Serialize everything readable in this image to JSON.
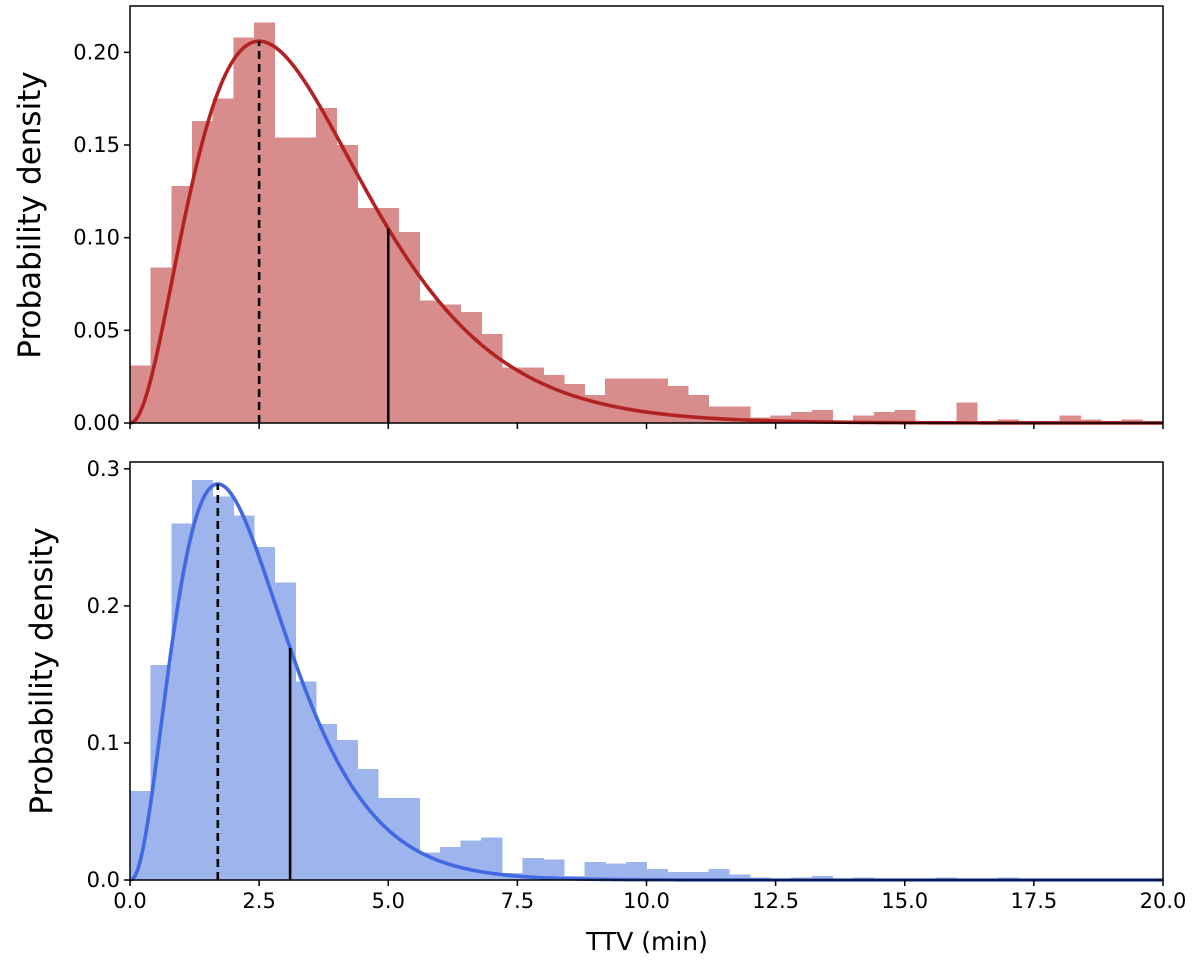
{
  "chart_data": [
    {
      "type": "bar",
      "panel": "top",
      "colors": {
        "bars": "#d98c8c",
        "curve": "#b22222",
        "lines": "#000000"
      },
      "ylabel": "Probability density",
      "xlim": [
        0,
        20
      ],
      "ylim": [
        0,
        0.225
      ],
      "yticks": [
        "0.00",
        "0.05",
        "0.10",
        "0.15",
        "0.20"
      ],
      "ytick_values": [
        0,
        0.05,
        0.1,
        0.15,
        0.2
      ],
      "bin_edges": [
        0,
        0.4,
        0.8,
        1.2,
        1.6,
        2.0,
        2.4,
        2.8,
        3.2,
        3.6,
        4.0,
        4.4,
        4.8,
        5.2,
        5.6,
        6.0,
        6.4,
        6.8,
        7.2,
        7.6,
        8.0,
        8.4,
        8.8,
        9.2,
        9.6,
        10.0,
        10.4,
        10.8,
        11.2,
        11.6,
        12.0,
        12.4,
        12.8,
        13.2,
        13.6,
        14.0,
        14.4,
        14.8,
        15.2,
        15.6,
        16.0,
        16.4,
        16.8,
        17.2,
        17.6,
        18.0,
        18.4,
        18.8,
        19.2,
        19.6,
        20.0
      ],
      "values": [
        0.031,
        0.084,
        0.128,
        0.163,
        0.175,
        0.208,
        0.216,
        0.154,
        0.154,
        0.17,
        0.15,
        0.116,
        0.116,
        0.103,
        0.066,
        0.064,
        0.06,
        0.048,
        0.03,
        0.03,
        0.026,
        0.021,
        0.015,
        0.024,
        0.024,
        0.024,
        0.02,
        0.015,
        0.009,
        0.009,
        0.003,
        0.004,
        0.006,
        0.007,
        0.001,
        0.004,
        0.006,
        0.007,
        0.001,
        0.001,
        0.011,
        0.001,
        0.002,
        0.001,
        0.001,
        0.004,
        0.002,
        0.001,
        0.002,
        0.001
      ],
      "fit_curve": {
        "mode": 2.5,
        "peak": 0.206,
        "shape": 3.2
      },
      "dashed_line_x": 2.5,
      "solid_line_x": 5.0
    },
    {
      "type": "bar",
      "panel": "bottom",
      "colors": {
        "bars": "#9db4ec",
        "curve": "#4169e1",
        "lines": "#000000"
      },
      "xlabel": "TTV (min)",
      "ylabel": "Probability density",
      "xlim": [
        0,
        20
      ],
      "ylim": [
        0,
        0.305
      ],
      "xticks": [
        "0.0",
        "2.5",
        "5.0",
        "7.5",
        "10.0",
        "12.5",
        "15.0",
        "17.5",
        "20.0"
      ],
      "xtick_values": [
        0,
        2.5,
        5,
        7.5,
        10,
        12.5,
        15,
        17.5,
        20
      ],
      "yticks": [
        "0.0",
        "0.1",
        "0.2",
        "0.3"
      ],
      "ytick_values": [
        0,
        0.1,
        0.2,
        0.3
      ],
      "bin_edges": [
        0,
        0.4,
        0.8,
        1.2,
        1.6,
        2.0,
        2.4,
        2.8,
        3.2,
        3.6,
        4.0,
        4.4,
        4.8,
        5.2,
        5.6,
        6.0,
        6.4,
        6.8,
        7.2,
        7.6,
        8.0,
        8.4,
        8.8,
        9.2,
        9.6,
        10.0,
        10.4,
        10.8,
        11.2,
        11.6,
        12.0,
        12.4,
        12.8,
        13.2,
        13.6,
        14.0,
        14.4,
        14.8,
        15.2,
        15.6,
        16.0,
        16.4,
        16.8,
        17.2,
        17.6,
        18.0,
        18.4,
        18.8,
        19.2,
        19.6,
        20.0
      ],
      "values": [
        0.065,
        0.157,
        0.26,
        0.292,
        0.28,
        0.266,
        0.243,
        0.217,
        0.145,
        0.114,
        0.102,
        0.081,
        0.06,
        0.06,
        0.02,
        0.024,
        0.029,
        0.031,
        0.005,
        0.016,
        0.015,
        0.003,
        0.013,
        0.012,
        0.013,
        0.008,
        0.006,
        0.006,
        0.008,
        0.004,
        0.002,
        0.001,
        0.002,
        0.003,
        0.001,
        0.002,
        0.001,
        0.001,
        0.001,
        0.002,
        0.001,
        0.001,
        0.002,
        0.001,
        0.001,
        0.001,
        0.001,
        0.001,
        0.001,
        0.001
      ],
      "fit_curve": {
        "mode": 1.7,
        "peak": 0.289,
        "shape": 3.4
      },
      "dashed_line_x": 1.7,
      "solid_line_x": 3.1
    }
  ]
}
